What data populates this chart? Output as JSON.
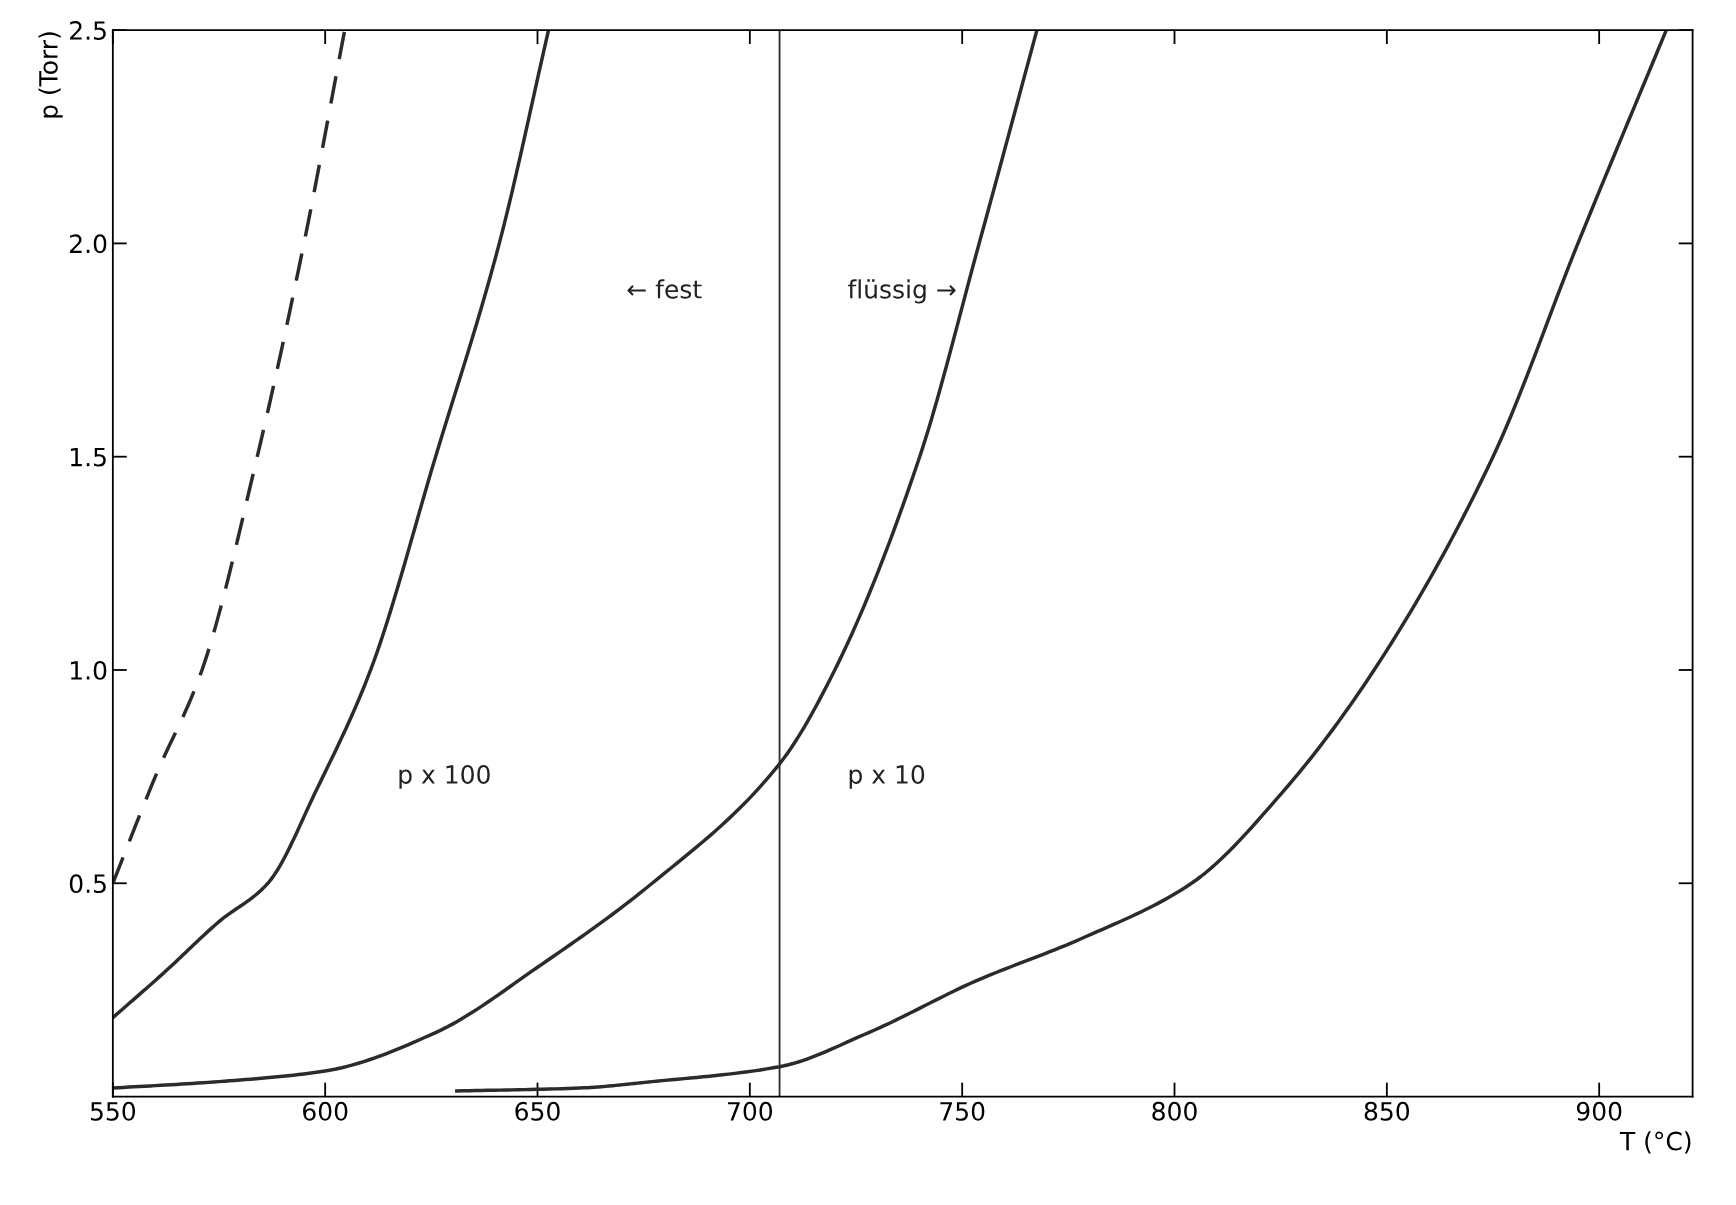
{
  "chart_data": {
    "type": "line",
    "xlabel": "T (°C)",
    "ylabel": "p (Torr)",
    "xlim": [
      550,
      922
    ],
    "ylim": [
      0,
      2.5
    ],
    "xticks": [
      550,
      600,
      650,
      700,
      750,
      800,
      850,
      900
    ],
    "yticks": [
      {
        "value": 0.5,
        "label": "0.5"
      },
      {
        "value": 1,
        "label": "1.0"
      },
      {
        "value": 1.5,
        "label": "1.5"
      },
      {
        "value": 2,
        "label": "2.0"
      },
      {
        "value": 2.5,
        "label": "2.5"
      }
    ],
    "grid": false,
    "legend": false,
    "series": [
      {
        "color": "#2b2b2b",
        "line_style": "dashed",
        "x": [
          550,
          560,
          571,
          584,
          595,
          604.6
        ],
        "values": [
          0.5,
          0.75,
          1.0,
          1.5,
          2.0,
          2.5
        ]
      },
      {
        "color": "#2b2b2b",
        "line_style": "solid",
        "x": [
          550,
          562,
          575,
          586.5,
          598,
          610.7,
          626,
          641,
          652.6
        ],
        "values": [
          0.185,
          0.29,
          0.41,
          0.5,
          0.72,
          1.0,
          1.5,
          2.0,
          2.5
        ]
      },
      {
        "color": "#2b2b2b",
        "line_style": "solid",
        "x": [
          550,
          575,
          600,
          626,
          651,
          677,
          707,
          720,
          740,
          754,
          767.6
        ],
        "values": [
          0.02,
          0.035,
          0.06,
          0.15,
          0.31,
          0.5,
          0.78,
          1.0,
          1.5,
          2.0,
          2.5
        ]
      },
      {
        "color": "#2b2b2b",
        "line_style": "solid",
        "x": [
          631,
          660,
          677,
          707,
          728,
          753,
          778,
          804,
          826,
          847,
          875,
          895,
          915.8
        ],
        "values": [
          0.013,
          0.02,
          0.035,
          0.07,
          0.15,
          0.27,
          0.37,
          0.5,
          0.72,
          1.0,
          1.5,
          2.0,
          2.5
        ]
      }
    ],
    "ref_lines": [
      {
        "axis": "x",
        "value": 707,
        "color": "#2b2b2b"
      }
    ],
    "annotations": [
      "p x 100",
      "p x 10",
      "← fest",
      "flüssig →"
    ]
  }
}
